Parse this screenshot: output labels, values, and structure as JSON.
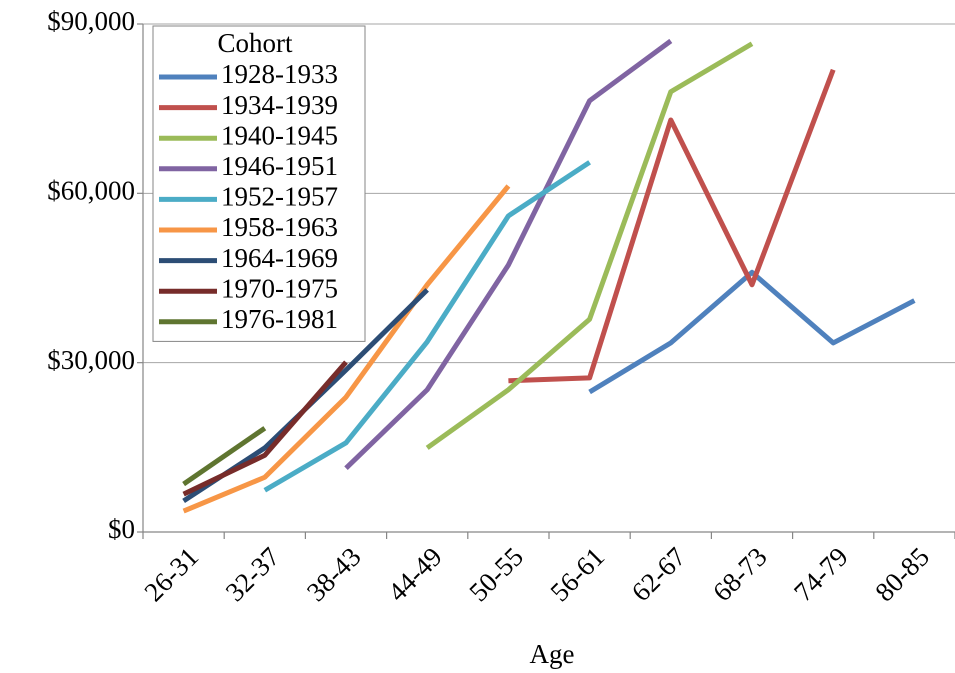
{
  "chart_data": {
    "type": "line",
    "x_label": "Age",
    "legend_title": "Cohort",
    "legend": "upper left",
    "grid": true,
    "categories": [
      "26-31",
      "32-37",
      "38-43",
      "44-49",
      "50-55",
      "56-61",
      "62-67",
      "68-73",
      "74-79",
      "80-85"
    ],
    "ylim": [
      0,
      90000
    ],
    "yticks": [
      {
        "value": 0,
        "label": "$0"
      },
      {
        "value": 30000,
        "label": "$30,000"
      },
      {
        "value": 60000,
        "label": "$60,000"
      },
      {
        "value": 90000,
        "label": "$90,000"
      }
    ],
    "series": [
      {
        "name": "1928-1933",
        "color": "#4f81bd",
        "values": [
          null,
          null,
          null,
          null,
          null,
          24800,
          33500,
          46000,
          33500,
          41000
        ]
      },
      {
        "name": "1934-1939",
        "color": "#c0504d",
        "values": [
          null,
          null,
          null,
          null,
          26800,
          27300,
          73000,
          43800,
          81900,
          null
        ]
      },
      {
        "name": "1940-1945",
        "color": "#9bbb59",
        "values": [
          null,
          null,
          null,
          14900,
          25200,
          37700,
          78000,
          86500,
          null,
          null
        ]
      },
      {
        "name": "1946-1951",
        "color": "#8064a2",
        "values": [
          null,
          null,
          11300,
          25200,
          47300,
          76400,
          87000,
          null,
          null,
          null
        ]
      },
      {
        "name": "1952-1957",
        "color": "#4bacc6",
        "values": [
          null,
          7400,
          15800,
          33700,
          56000,
          65500,
          null,
          null,
          null,
          null
        ]
      },
      {
        "name": "1958-1963",
        "color": "#f79646",
        "values": [
          3700,
          9700,
          23900,
          43800,
          61300,
          null,
          null,
          null,
          null,
          null
        ]
      },
      {
        "name": "1964-1969",
        "color": "#2c4d75",
        "values": [
          5500,
          14900,
          28700,
          42900,
          null,
          null,
          null,
          null,
          null,
          null
        ]
      },
      {
        "name": "1970-1975",
        "color": "#772c2a",
        "values": [
          6700,
          13600,
          30100,
          null,
          null,
          null,
          null,
          null,
          null,
          null
        ]
      },
      {
        "name": "1976-1981",
        "color": "#5f7530",
        "values": [
          8500,
          18400,
          null,
          null,
          null,
          null,
          null,
          null,
          null,
          null
        ]
      }
    ]
  }
}
